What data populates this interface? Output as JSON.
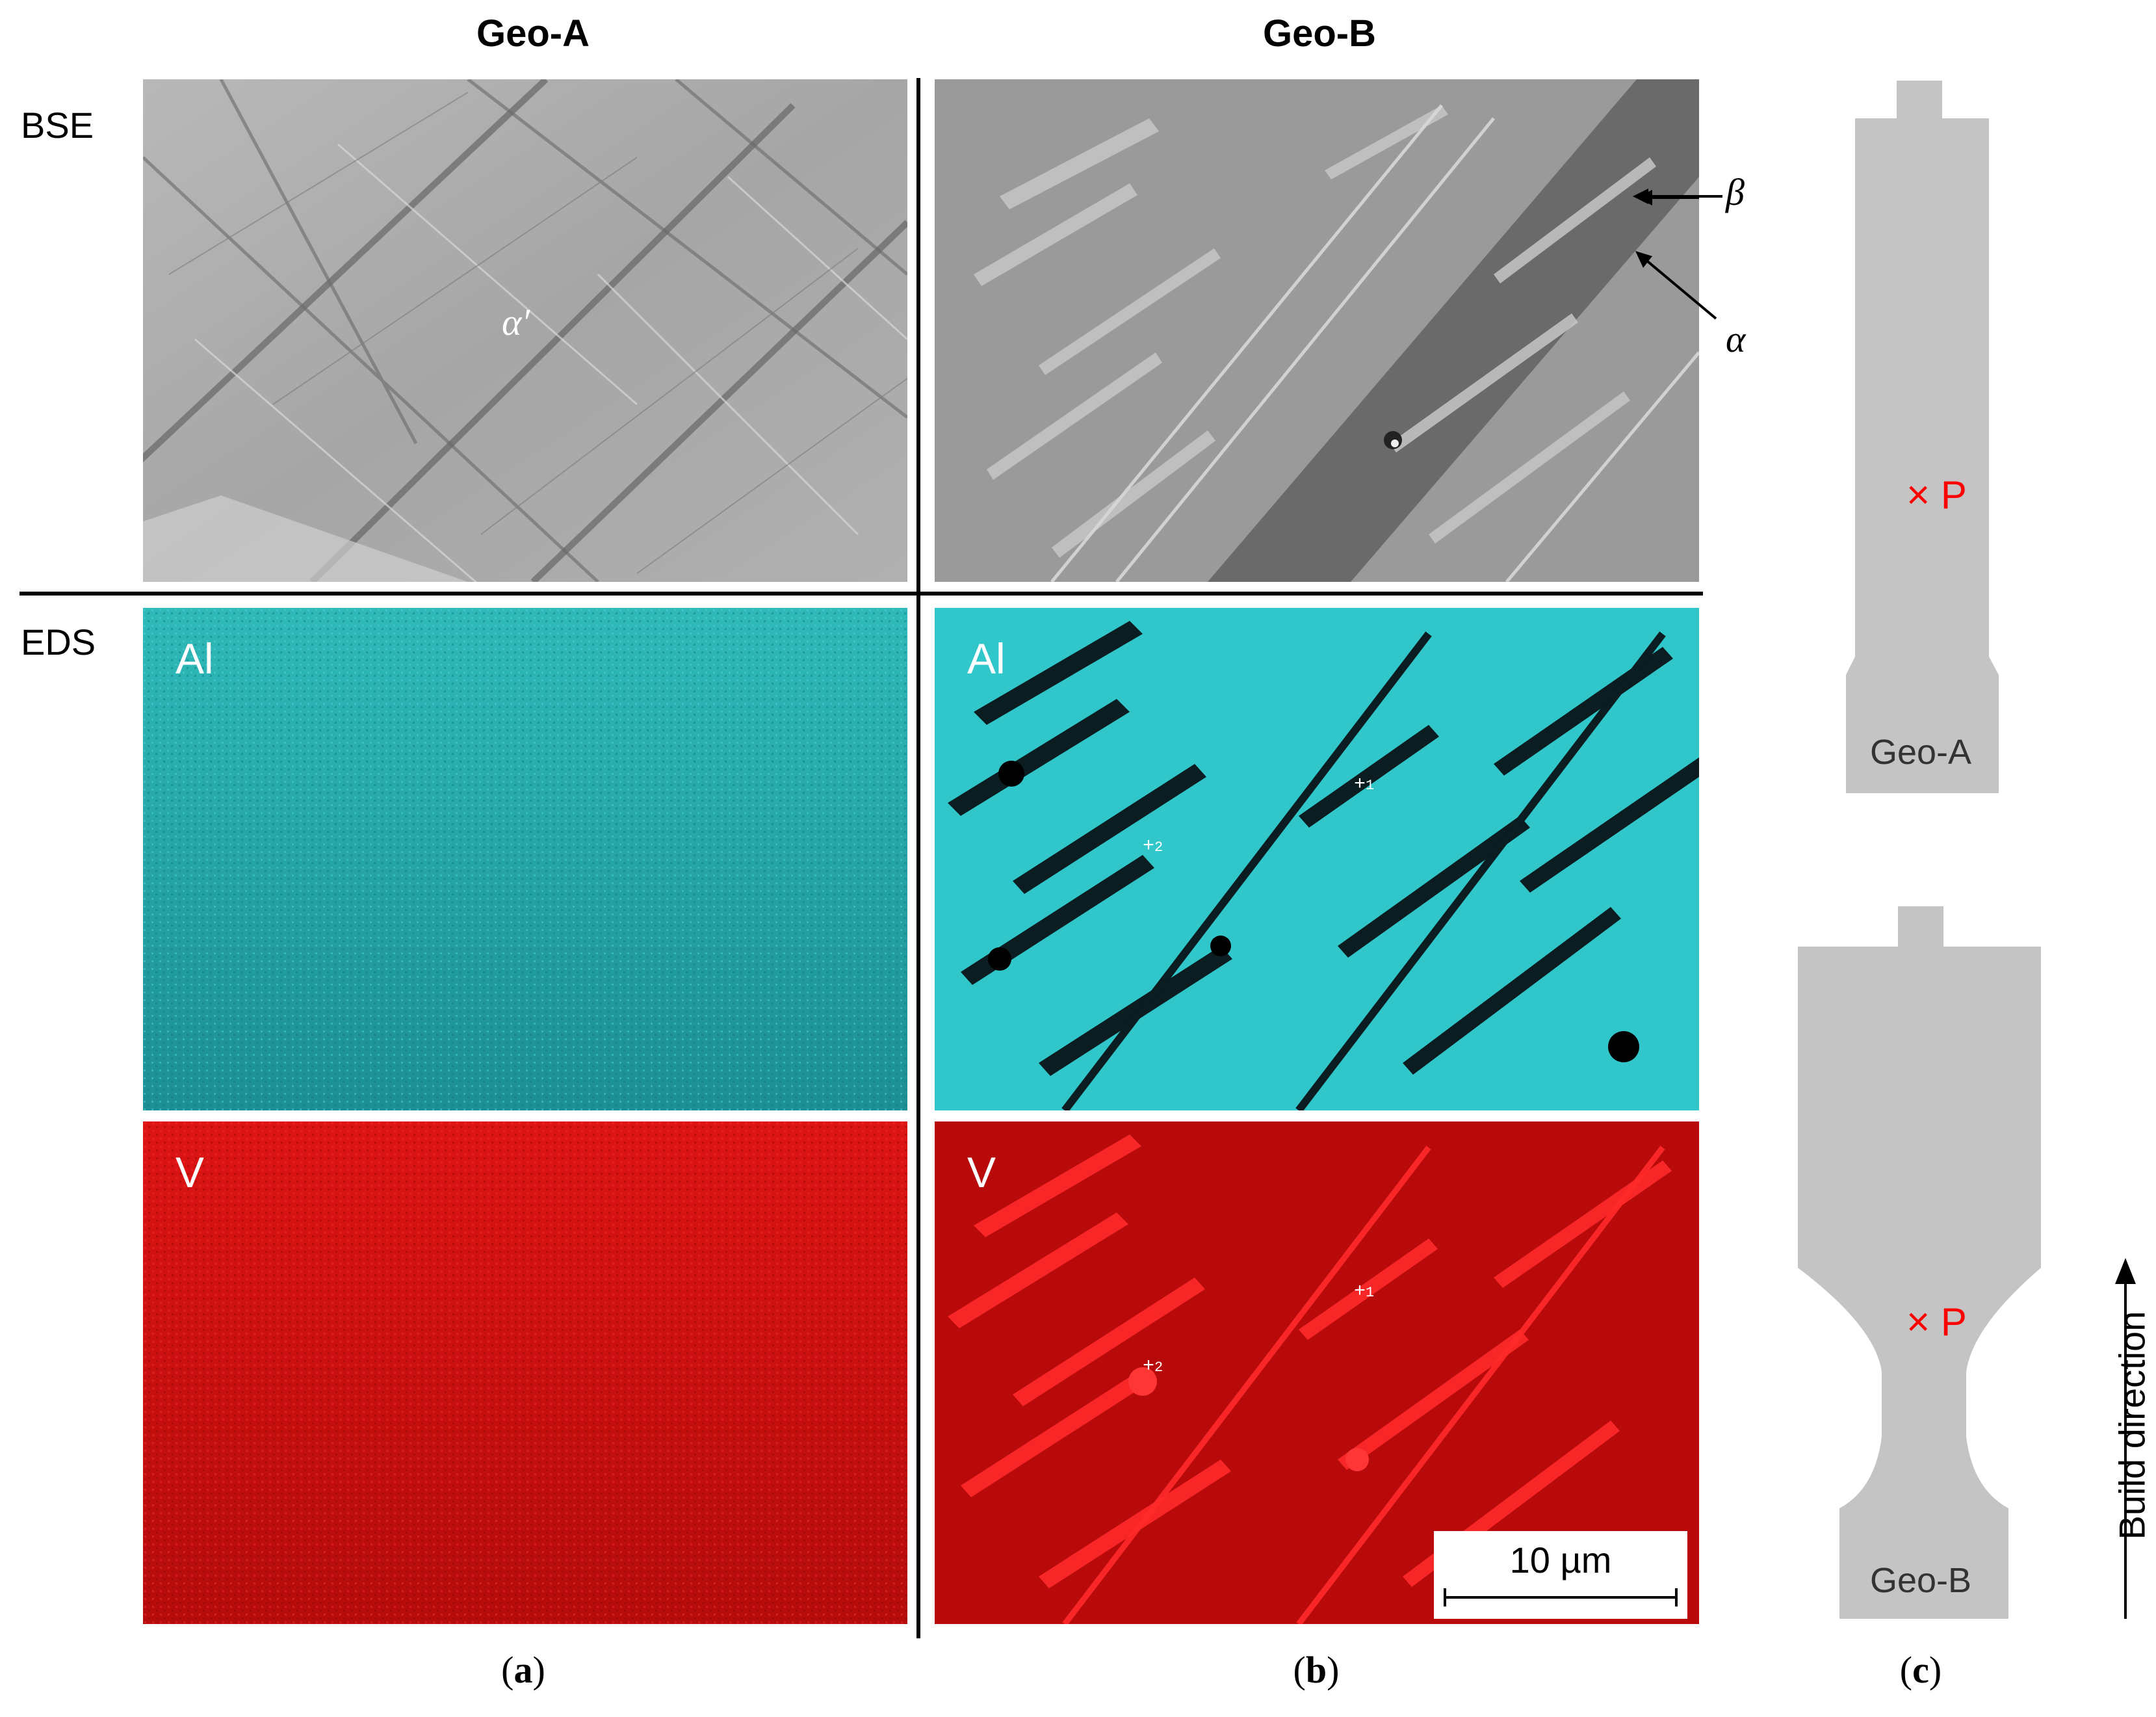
{
  "columns": {
    "a_title": "Geo-A",
    "b_title": "Geo-B"
  },
  "rows": {
    "bse": "BSE",
    "eds": "EDS"
  },
  "maps": {
    "al": "Al",
    "v": "V"
  },
  "annotations": {
    "alpha_prime": "α′",
    "beta": "β",
    "alpha": "α"
  },
  "points": {
    "p1": "1",
    "p2": "2"
  },
  "scale_bar": {
    "label": "10 µm"
  },
  "subfigures": {
    "a": "a",
    "b": "b",
    "c": "c"
  },
  "specimens": {
    "geo_a": {
      "label": "Geo-A",
      "marker": "×",
      "point": "P"
    },
    "geo_b": {
      "label": "Geo-B",
      "marker": "×",
      "point": "P"
    }
  },
  "build_direction": "Build direction",
  "colors": {
    "al_map": "#27c8c8",
    "v_map": "#d40f0f",
    "specimen": "#c4c4c4",
    "marker": "#ff0000"
  }
}
